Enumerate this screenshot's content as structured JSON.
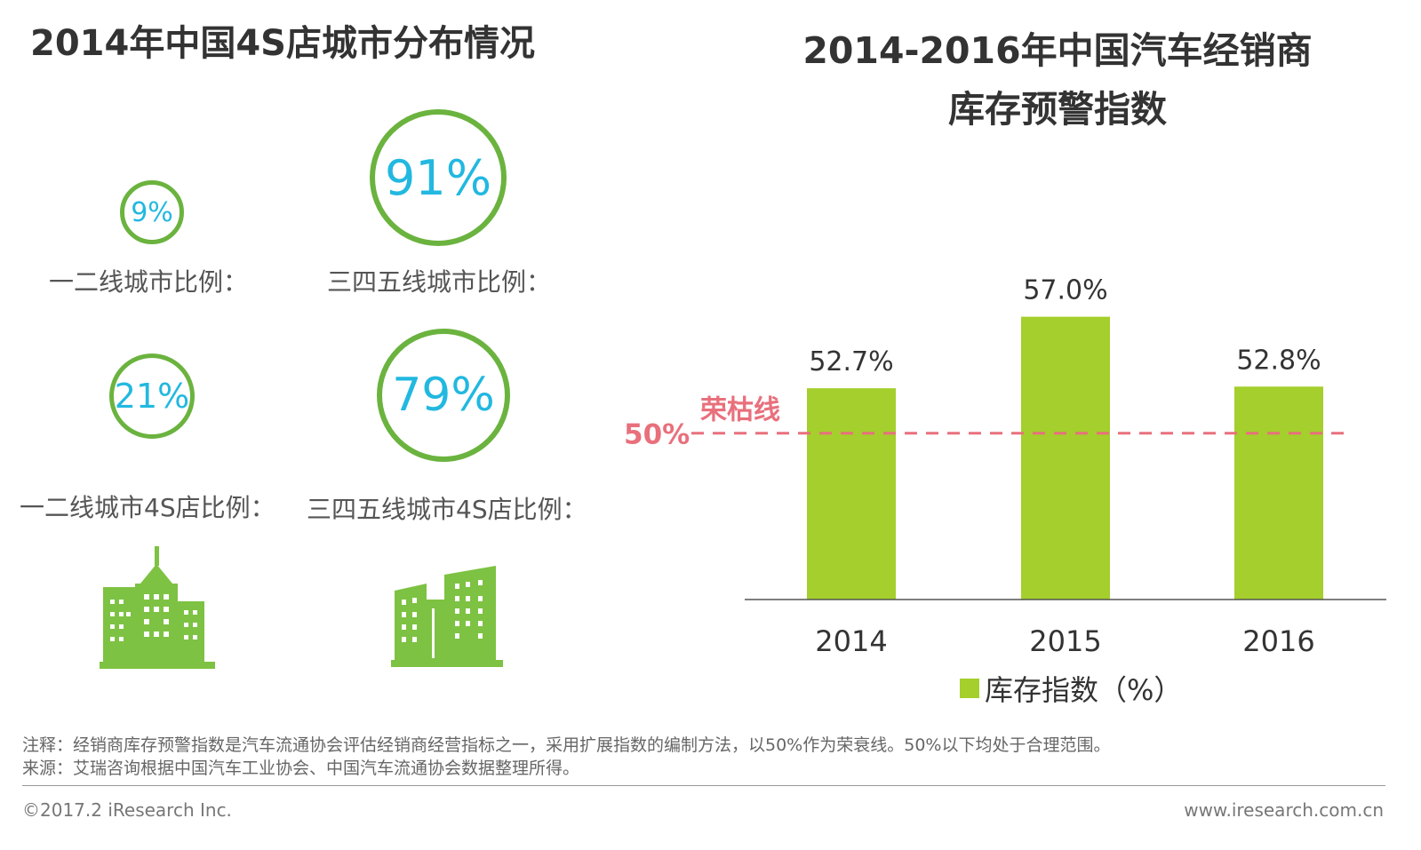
{
  "left": {
    "title": "2014年中国4S店城市分布情况",
    "rings": [
      {
        "value": "9%",
        "label": "一二线城市比例："
      },
      {
        "value": "91%",
        "label": "三四五线城市比例："
      },
      {
        "value": "21%",
        "label": "一二线城市4S店比例："
      },
      {
        "value": "79%",
        "label": "三四五线城市4S店比例："
      }
    ],
    "icons": [
      "city-buildings-icon",
      "city-buildings-icon"
    ]
  },
  "right": {
    "title_line1": "2014-2016年中国汽车经销商",
    "title_line2": "库存预警指数"
  },
  "chart_data": {
    "type": "bar",
    "title": "2014-2016年中国汽车经销商库存预警指数",
    "categories": [
      "2014",
      "2015",
      "2016"
    ],
    "series": [
      {
        "name": "库存指数（%）",
        "values": [
          52.7,
          57.0,
          52.8
        ],
        "color": "#a4cf2c"
      }
    ],
    "data_labels": [
      "52.7%",
      "57.0%",
      "52.8%"
    ],
    "reference_line": {
      "value": 50,
      "value_label": "50%",
      "name": "荣枯线",
      "color": "#e8707c",
      "style": "dashed"
    },
    "ylim": [
      40,
      58
    ],
    "grid": false,
    "legend": "bottom-center"
  },
  "notes": {
    "note": "注释：经销商库存预警指数是汽车流通协会评估经销商经营指标之一，采用扩展指数的编制方法，以50%作为荣衰线。50%以下均处于合理范围。",
    "source": "来源：艾瑞咨询根据中国汽车工业协会、中国汽车流通协会数据整理所得。"
  },
  "footer": {
    "copyright": "©2017.2 iResearch Inc.",
    "website": "www.iresearch.com.cn"
  },
  "colors": {
    "ring": "#6bb33f",
    "ring_text": "#22b8e0",
    "bar": "#a4cf2c",
    "reference": "#e8707c",
    "building": "#7dc242"
  }
}
